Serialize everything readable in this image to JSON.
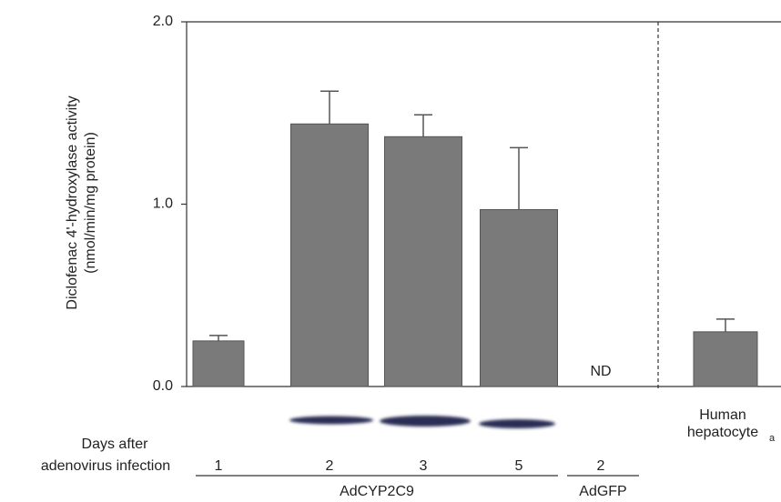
{
  "chart_data": {
    "type": "bar",
    "y_label": [
      "Diclofenac 4'-hydroxylase activity",
      "(nmol/min/mg protein)"
    ],
    "x_label": [
      "Days after",
      "adenovirus infection"
    ],
    "ylim": [
      0,
      2
    ],
    "yticks": [
      {
        "value": 0,
        "label": "0.0"
      },
      {
        "value": 1,
        "label": "1.0"
      },
      {
        "value": 2,
        "label": "2.0"
      }
    ],
    "color": "#7a7a7a",
    "groups": [
      {
        "name": "AdCYP2C9",
        "categories": [
          "1",
          "2",
          "3",
          "5"
        ],
        "values": [
          0.25,
          1.44,
          1.37,
          0.97
        ],
        "errors": [
          0.03,
          0.18,
          0.12,
          0.34
        ]
      },
      {
        "name": "AdGFP",
        "categories": [
          "2"
        ],
        "values": [
          null
        ],
        "value_labels": [
          "ND"
        ]
      },
      {
        "categories": [
          "Human hepatocyte"
        ],
        "category_note": "a",
        "values": [
          0.3
        ],
        "errors": [
          0.07
        ]
      }
    ]
  }
}
